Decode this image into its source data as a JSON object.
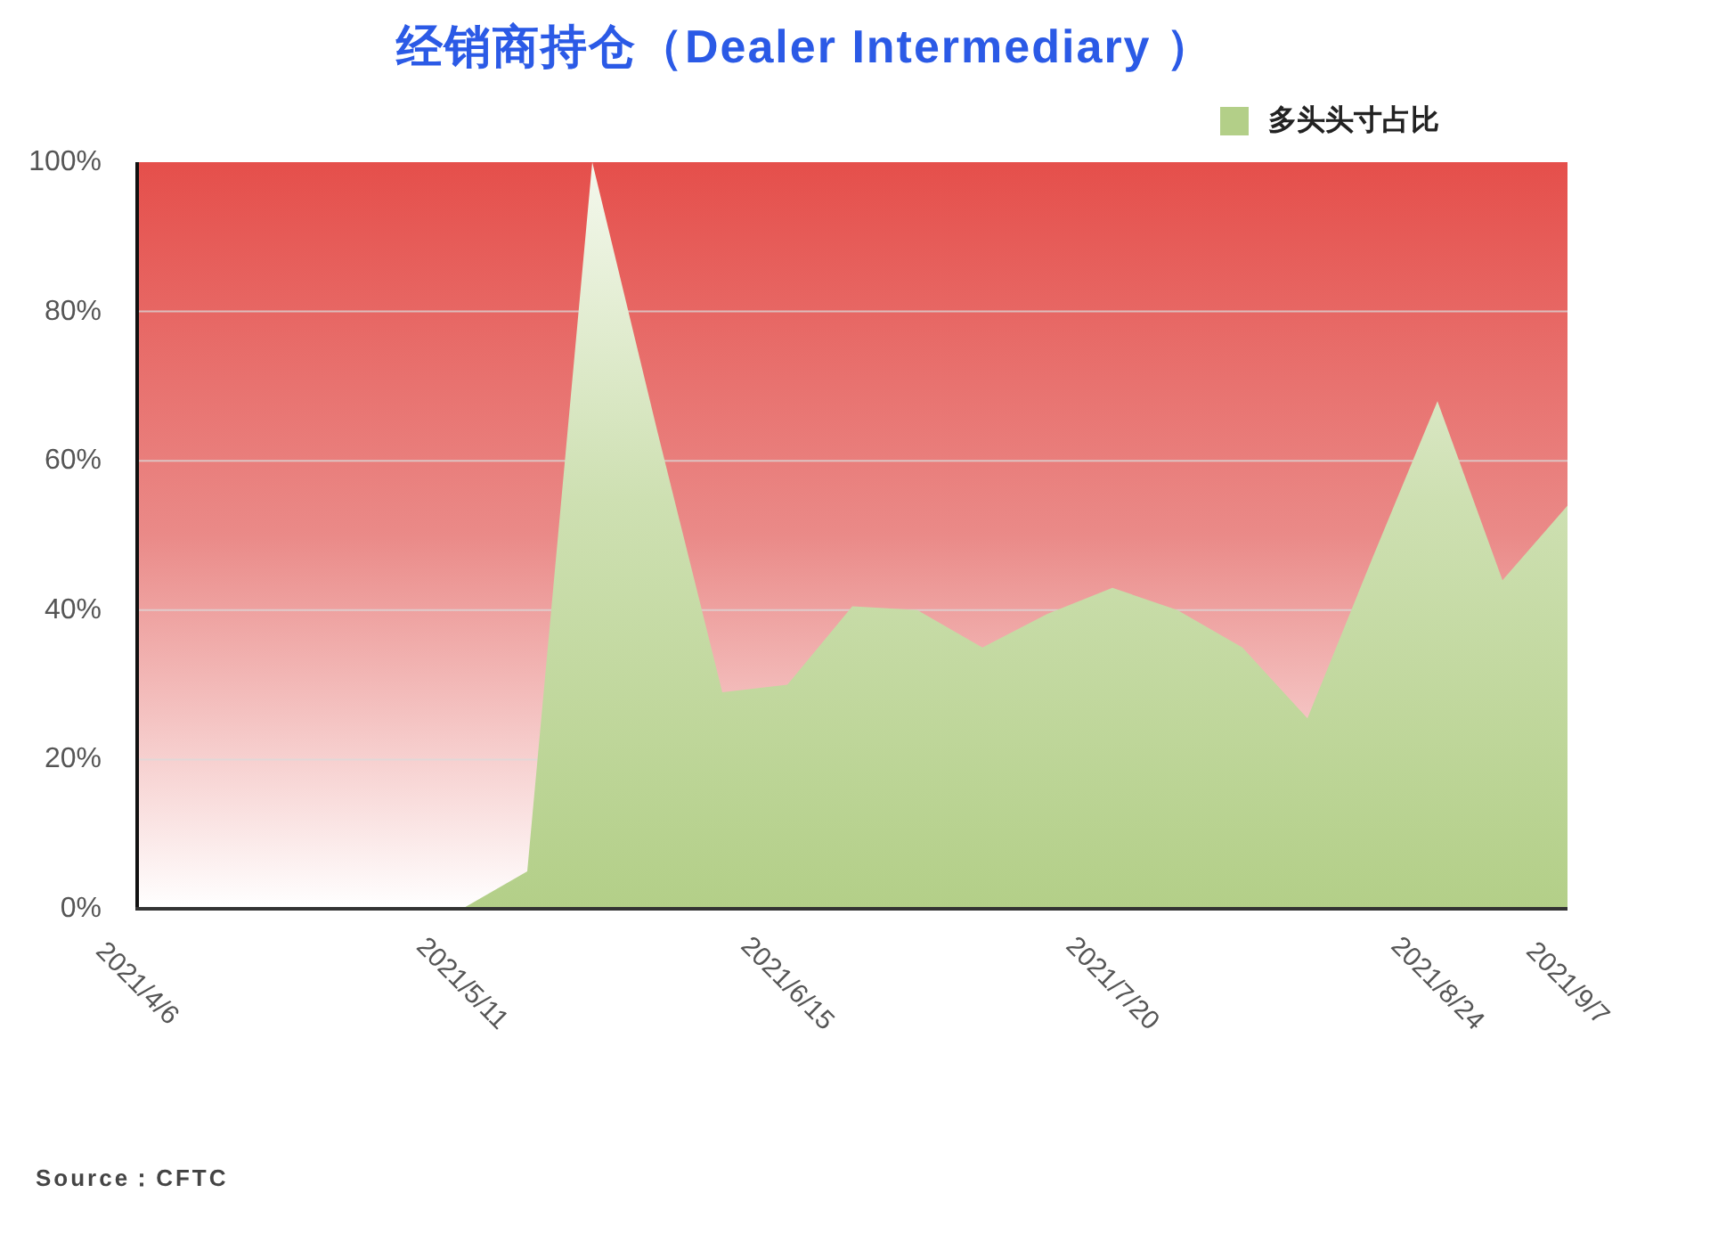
{
  "chart_data": {
    "type": "area",
    "title": "经销商持仓（Dealer Intermediary ）",
    "categories": [
      "2021/4/6",
      null,
      null,
      null,
      null,
      "2021/5/11",
      null,
      null,
      null,
      null,
      "2021/6/15",
      null,
      null,
      null,
      null,
      "2021/7/20",
      null,
      null,
      null,
      null,
      "2021/8/24",
      null,
      "2021/9/7"
    ],
    "series": [
      {
        "name": "多头头寸占比",
        "color": "#b3cf88",
        "values": [
          0,
          0,
          0,
          0,
          0,
          0,
          5,
          100,
          64,
          29,
          30,
          40.5,
          40,
          35,
          39.5,
          43,
          40,
          35,
          25.5,
          47,
          68,
          44,
          54
        ]
      }
    ],
    "ylim": [
      0,
      100
    ],
    "yticks": [
      {
        "value": 0,
        "label": "0%"
      },
      {
        "value": 20,
        "label": "20%"
      },
      {
        "value": 40,
        "label": "40%"
      },
      {
        "value": 60,
        "label": "60%"
      },
      {
        "value": 80,
        "label": "80%"
      },
      {
        "value": 100,
        "label": "100%"
      }
    ],
    "grid": "y",
    "legend": "top right",
    "annotations": [
      "Source：CFTC"
    ]
  }
}
